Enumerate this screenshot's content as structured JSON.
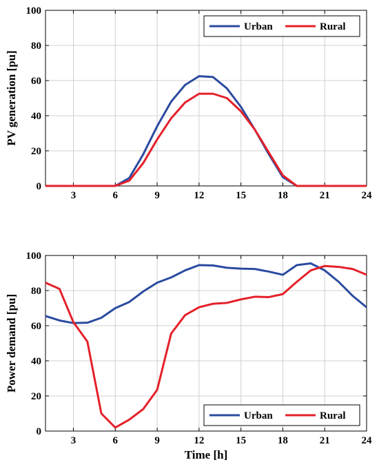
{
  "chart_data": [
    {
      "type": "line",
      "xlabel": "",
      "ylabel": "PV generation [pu]",
      "xlim": [
        1,
        24
      ],
      "ylim": [
        0,
        100
      ],
      "xticks": [
        3,
        6,
        9,
        12,
        15,
        18,
        21,
        24
      ],
      "yticks": [
        0,
        20,
        40,
        60,
        80,
        100
      ],
      "grid": true,
      "legend_position": "top-right",
      "x": [
        1,
        2,
        3,
        4,
        5,
        6,
        7,
        8,
        9,
        10,
        11,
        12,
        13,
        14,
        15,
        16,
        17,
        18,
        19,
        20,
        21,
        22,
        23,
        24
      ],
      "series": [
        {
          "name": "Urban",
          "color": "#2a4aa0",
          "values": [
            0,
            0,
            0,
            0,
            0,
            0,
            4.5,
            18,
            34,
            48,
            57.5,
            62.5,
            62,
            55.5,
            45,
            32,
            18,
            5,
            0,
            0,
            0,
            0,
            0,
            0
          ]
        },
        {
          "name": "Rural",
          "color": "#e4202a",
          "values": [
            0,
            0,
            0,
            0,
            0,
            0,
            3,
            13,
            26.5,
            38.5,
            47.5,
            52.5,
            52.5,
            50,
            42.5,
            32,
            19,
            6,
            0,
            0,
            0,
            0,
            0,
            0
          ]
        }
      ]
    },
    {
      "type": "line",
      "xlabel": "Time [h]",
      "ylabel": "Power demand [pu]",
      "xlim": [
        1,
        24
      ],
      "ylim": [
        0,
        100
      ],
      "xticks": [
        3,
        6,
        9,
        12,
        15,
        18,
        21,
        24
      ],
      "yticks": [
        0,
        20,
        40,
        60,
        80,
        100
      ],
      "grid": true,
      "legend_position": "bottom-right",
      "x": [
        1,
        2,
        3,
        4,
        5,
        6,
        7,
        8,
        9,
        10,
        11,
        12,
        13,
        14,
        15,
        16,
        17,
        18,
        19,
        20,
        21,
        22,
        23,
        24
      ],
      "series": [
        {
          "name": "Urban",
          "color": "#2a4aa0",
          "values": [
            65.5,
            63,
            61.5,
            61.7,
            64.5,
            70,
            73.5,
            79.5,
            84.5,
            87.5,
            91.5,
            94.5,
            94.3,
            93,
            92.5,
            92.3,
            90.8,
            89,
            94.5,
            95.5,
            91.5,
            85,
            77,
            70.5
          ]
        },
        {
          "name": "Rural",
          "color": "#e4202a",
          "values": [
            84.5,
            81,
            62,
            51,
            10,
            2,
            6.5,
            12.5,
            23.5,
            55.5,
            66,
            70.5,
            72.5,
            73,
            75,
            76.5,
            76.3,
            78,
            85,
            91.5,
            94,
            93.5,
            92.3,
            89
          ]
        }
      ]
    }
  ]
}
